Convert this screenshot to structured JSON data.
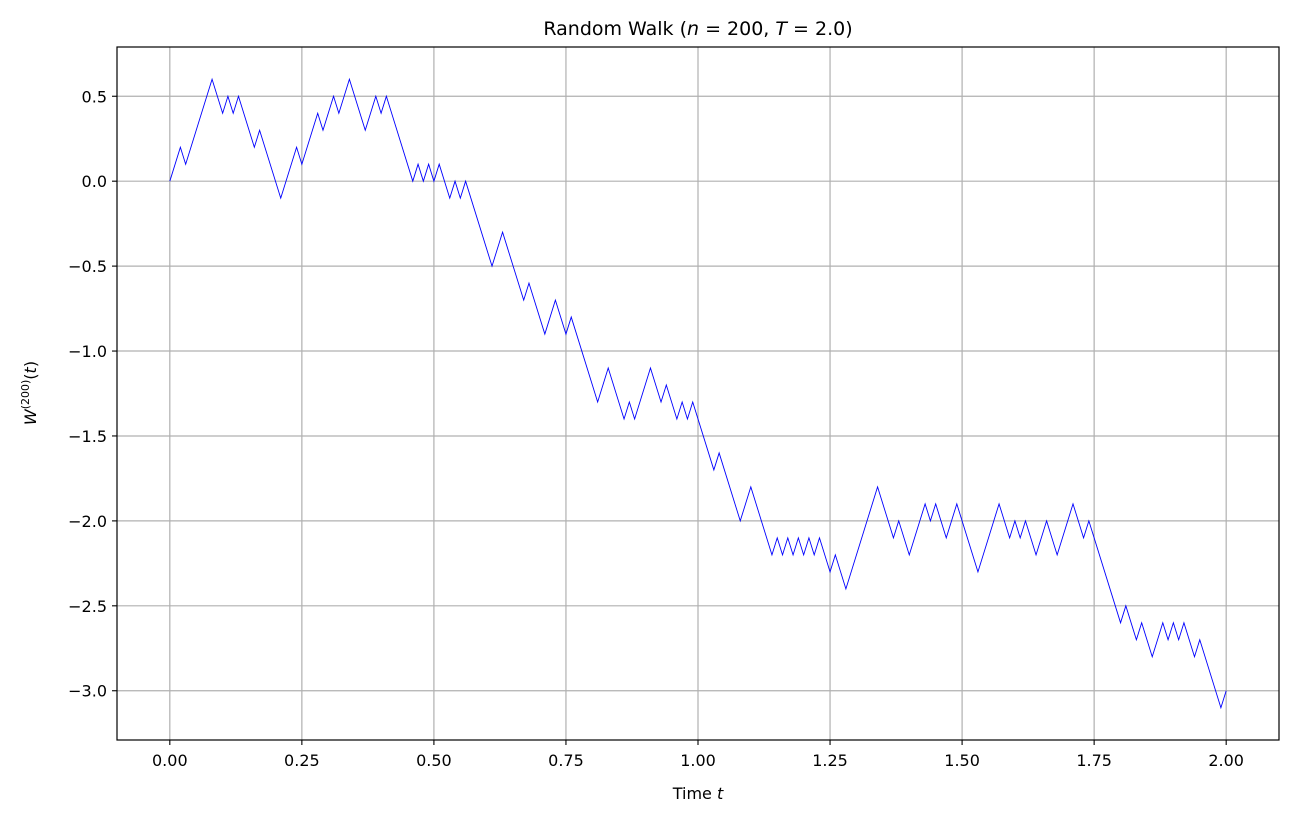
{
  "chart_data": {
    "type": "line",
    "title": "Random Walk (n = 200, T = 2.0)",
    "title_parts": {
      "prefix": "Random Walk (",
      "n_symbol": "n",
      "n_eq": " = 200, ",
      "t_symbol": "T",
      "t_eq": " = 2.0)"
    },
    "xlabel": "Time t",
    "xlabel_parts": {
      "text": "Time ",
      "symbol": "t"
    },
    "ylabel": "W(200)(t)",
    "ylabel_parts": {
      "base": "W",
      "sup": "(200)",
      "arg_open": "(",
      "arg": "t",
      "arg_close": ")"
    },
    "xlim": [
      -0.1,
      2.1
    ],
    "ylim": [
      -3.29,
      0.79
    ],
    "xticks": [
      0.0,
      0.25,
      0.5,
      0.75,
      1.0,
      1.25,
      1.5,
      1.75,
      2.0
    ],
    "xtick_labels": [
      "0.00",
      "0.25",
      "0.50",
      "0.75",
      "1.00",
      "1.25",
      "1.50",
      "1.75",
      "2.00"
    ],
    "yticks": [
      0.5,
      0.0,
      -0.5,
      -1.0,
      -1.5,
      -2.0,
      -2.5,
      -3.0
    ],
    "ytick_labels": [
      "0.5",
      "0.0",
      "−0.5",
      "−1.0",
      "−1.5",
      "−2.0",
      "−2.5",
      "−3.0"
    ],
    "grid": true,
    "series": [
      {
        "color": "#0000ff",
        "points": [
          [
            0.0,
            0.0
          ],
          [
            0.02,
            0.2
          ],
          [
            0.03,
            0.1
          ],
          [
            0.08,
            0.6
          ],
          [
            0.1,
            0.4
          ],
          [
            0.11,
            0.5
          ],
          [
            0.12,
            0.4
          ],
          [
            0.13,
            0.5
          ],
          [
            0.16,
            0.2
          ],
          [
            0.17,
            0.3
          ],
          [
            0.21,
            -0.1
          ],
          [
            0.24,
            0.2
          ],
          [
            0.25,
            0.1
          ],
          [
            0.28,
            0.4
          ],
          [
            0.29,
            0.3
          ],
          [
            0.31,
            0.5
          ],
          [
            0.32,
            0.4
          ],
          [
            0.34,
            0.6
          ],
          [
            0.37,
            0.3
          ],
          [
            0.39,
            0.5
          ],
          [
            0.4,
            0.4
          ],
          [
            0.41,
            0.5
          ],
          [
            0.46,
            0.0
          ],
          [
            0.47,
            0.1
          ],
          [
            0.48,
            0.0
          ],
          [
            0.49,
            0.1
          ],
          [
            0.5,
            0.0
          ],
          [
            0.51,
            0.1
          ],
          [
            0.53,
            -0.1
          ],
          [
            0.54,
            0.0
          ],
          [
            0.55,
            -0.1
          ],
          [
            0.56,
            0.0
          ],
          [
            0.61,
            -0.5
          ],
          [
            0.63,
            -0.3
          ],
          [
            0.67,
            -0.7
          ],
          [
            0.68,
            -0.6
          ],
          [
            0.71,
            -0.9
          ],
          [
            0.73,
            -0.7
          ],
          [
            0.75,
            -0.9
          ],
          [
            0.76,
            -0.8
          ],
          [
            0.81,
            -1.3
          ],
          [
            0.83,
            -1.1
          ],
          [
            0.86,
            -1.4
          ],
          [
            0.87,
            -1.3
          ],
          [
            0.88,
            -1.4
          ],
          [
            0.91,
            -1.1
          ],
          [
            0.93,
            -1.3
          ],
          [
            0.94,
            -1.2
          ],
          [
            0.96,
            -1.4
          ],
          [
            0.97,
            -1.3
          ],
          [
            0.98,
            -1.4
          ],
          [
            0.99,
            -1.3
          ],
          [
            1.03,
            -1.7
          ],
          [
            1.04,
            -1.6
          ],
          [
            1.08,
            -2.0
          ],
          [
            1.1,
            -1.8
          ],
          [
            1.14,
            -2.2
          ],
          [
            1.15,
            -2.1
          ],
          [
            1.16,
            -2.2
          ],
          [
            1.17,
            -2.1
          ],
          [
            1.18,
            -2.2
          ],
          [
            1.19,
            -2.1
          ],
          [
            1.2,
            -2.2
          ],
          [
            1.21,
            -2.1
          ],
          [
            1.22,
            -2.2
          ],
          [
            1.23,
            -2.1
          ],
          [
            1.25,
            -2.3
          ],
          [
            1.26,
            -2.2
          ],
          [
            1.28,
            -2.4
          ],
          [
            1.34,
            -1.8
          ],
          [
            1.37,
            -2.1
          ],
          [
            1.38,
            -2.0
          ],
          [
            1.4,
            -2.2
          ],
          [
            1.43,
            -1.9
          ],
          [
            1.44,
            -2.0
          ],
          [
            1.45,
            -1.9
          ],
          [
            1.47,
            -2.1
          ],
          [
            1.49,
            -1.9
          ],
          [
            1.53,
            -2.3
          ],
          [
            1.57,
            -1.9
          ],
          [
            1.59,
            -2.1
          ],
          [
            1.6,
            -2.0
          ],
          [
            1.61,
            -2.1
          ],
          [
            1.62,
            -2.0
          ],
          [
            1.64,
            -2.2
          ],
          [
            1.66,
            -2.0
          ],
          [
            1.68,
            -2.2
          ],
          [
            1.71,
            -1.9
          ],
          [
            1.73,
            -2.1
          ],
          [
            1.74,
            -2.0
          ],
          [
            1.8,
            -2.6
          ],
          [
            1.81,
            -2.5
          ],
          [
            1.83,
            -2.7
          ],
          [
            1.84,
            -2.6
          ],
          [
            1.86,
            -2.8
          ],
          [
            1.88,
            -2.6
          ],
          [
            1.89,
            -2.7
          ],
          [
            1.9,
            -2.6
          ],
          [
            1.91,
            -2.7
          ],
          [
            1.92,
            -2.6
          ],
          [
            1.94,
            -2.8
          ],
          [
            1.95,
            -2.7
          ],
          [
            1.99,
            -3.1
          ],
          [
            2.0,
            -3.0
          ]
        ]
      }
    ]
  }
}
